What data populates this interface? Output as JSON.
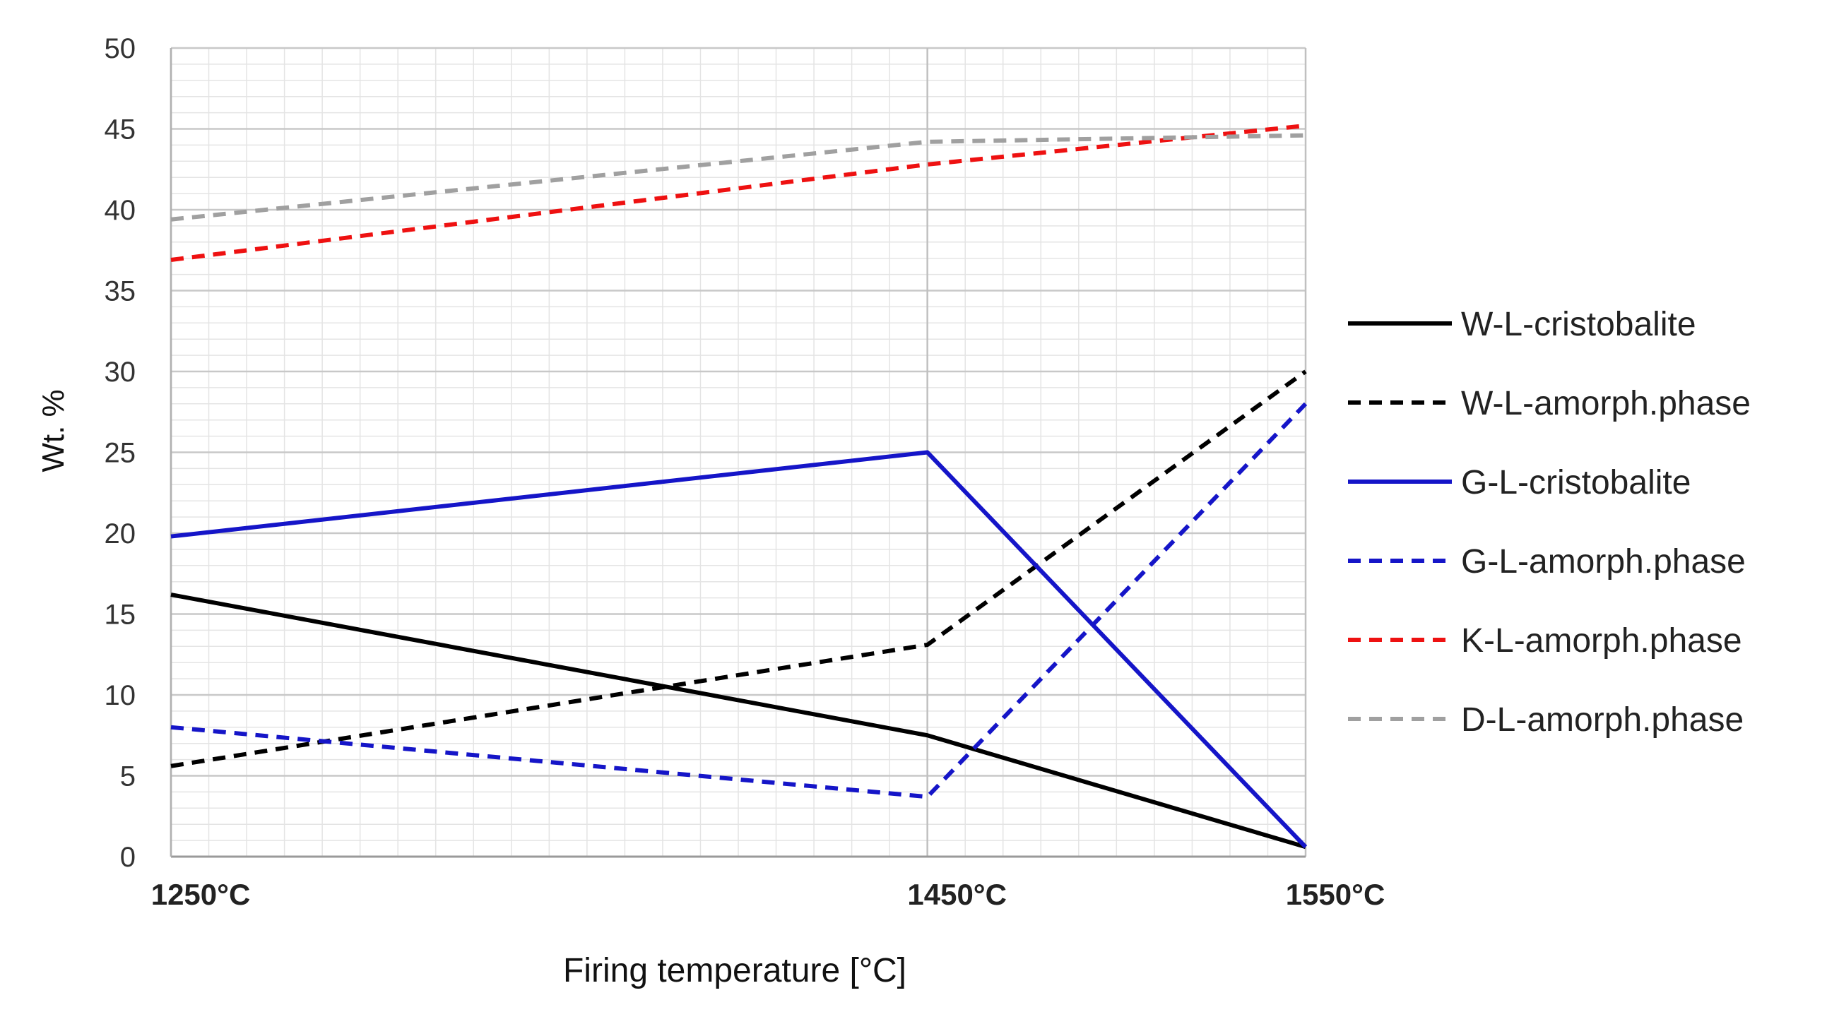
{
  "chart_data": {
    "type": "line",
    "title": "",
    "xlabel": "Firing temperature [°C]",
    "ylabel": "Wt. %",
    "x": [
      1250,
      1450,
      1550
    ],
    "x_tick_labels": [
      "1250°C",
      "1450°C",
      "1550°C"
    ],
    "ylim": [
      0,
      50
    ],
    "y_ticks": [
      0,
      5,
      10,
      15,
      20,
      25,
      30,
      35,
      40,
      45,
      50
    ],
    "grid": true,
    "legend_position": "right",
    "series": [
      {
        "name": "W-L-cristobalite",
        "values": [
          16.2,
          7.5,
          0.6
        ],
        "color": "#000000",
        "dash": "solid"
      },
      {
        "name": "W-L-amorph.phase",
        "values": [
          5.6,
          13.1,
          30.0
        ],
        "color": "#000000",
        "dash": "dashed"
      },
      {
        "name": "G-L-cristobalite",
        "values": [
          19.8,
          25.0,
          0.6
        ],
        "color": "#1515c8",
        "dash": "solid"
      },
      {
        "name": "G-L-amorph.phase",
        "values": [
          8.0,
          3.7,
          28.0
        ],
        "color": "#1515c8",
        "dash": "dashed"
      },
      {
        "name": "K-L-amorph.phase",
        "values": [
          36.9,
          42.8,
          45.2
        ],
        "color": "#ee1111",
        "dash": "dashed"
      },
      {
        "name": "D-L-amorph.phase",
        "values": [
          39.4,
          44.2,
          44.6
        ],
        "color": "#a0a0a0",
        "dash": "dashed"
      }
    ]
  }
}
